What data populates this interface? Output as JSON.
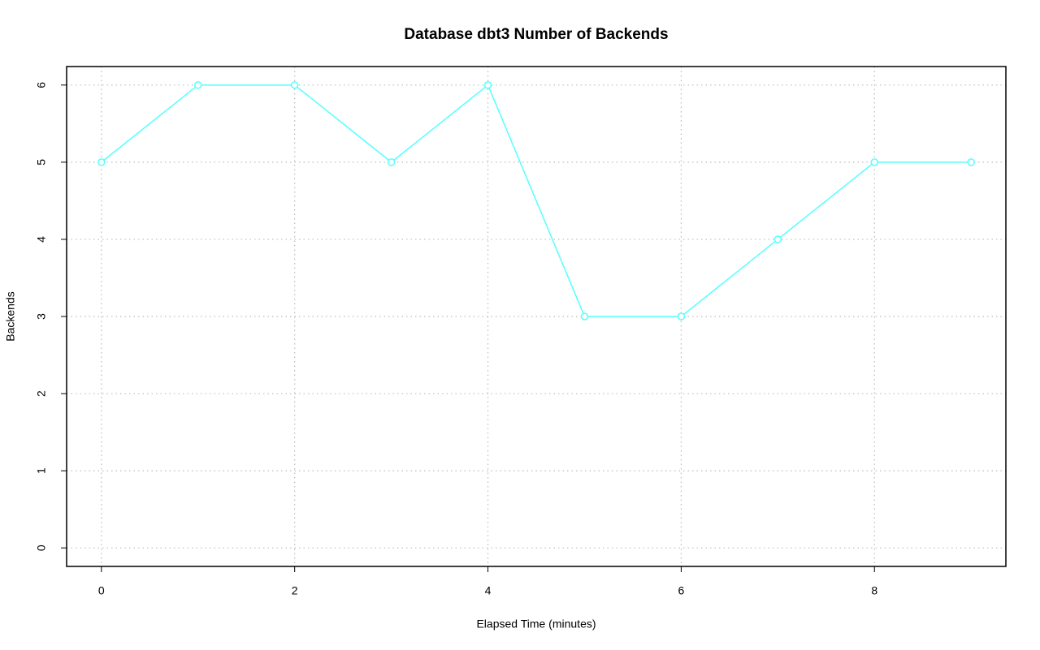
{
  "chart_data": {
    "type": "line",
    "title": "Database dbt3 Number of Backends",
    "x_label": "Elapsed Time (minutes)",
    "y_label": "Backends",
    "x": [
      0,
      1,
      2,
      3,
      4,
      5,
      6,
      7,
      8,
      9
    ],
    "series": [
      {
        "name": "Backends",
        "color": "#55ffff",
        "values": [
          5,
          6,
          6,
          5,
          6,
          3,
          3,
          4,
          5,
          5
        ]
      }
    ],
    "xlim": [
      -0.36,
      9.36
    ],
    "xticks": [
      0,
      2,
      4,
      6,
      8
    ],
    "ylim": [
      -0.24,
      6.24
    ],
    "yticks": [
      0,
      1,
      2,
      3,
      4,
      5,
      6
    ],
    "grid": true
  }
}
